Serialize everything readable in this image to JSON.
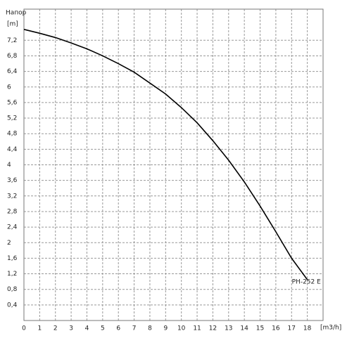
{
  "chart_data": {
    "type": "line",
    "title": "Напор",
    "y_label": "[m]",
    "x_label": "[m3/h]",
    "x": [
      0,
      1,
      2,
      3,
      4,
      5,
      6,
      7,
      8,
      9,
      10,
      11,
      12,
      13,
      14,
      15,
      16,
      17,
      18
    ],
    "series": [
      {
        "name": "PH-252 E",
        "color": "#000000",
        "values": [
          7.48,
          7.38,
          7.27,
          7.13,
          6.98,
          6.8,
          6.6,
          6.38,
          6.1,
          5.82,
          5.47,
          5.08,
          4.62,
          4.12,
          3.56,
          2.94,
          2.28,
          1.6,
          1.05
        ]
      }
    ],
    "xlim": [
      0,
      19
    ],
    "ylim": [
      0,
      8
    ],
    "xticks": [
      0,
      1,
      2,
      3,
      4,
      5,
      6,
      7,
      8,
      9,
      10,
      11,
      12,
      13,
      14,
      15,
      16,
      17,
      18
    ],
    "yticks": [
      {
        "value": 0.4,
        "label": "0,4"
      },
      {
        "value": 0.8,
        "label": "0,8"
      },
      {
        "value": 1.2,
        "label": "1,2"
      },
      {
        "value": 1.6,
        "label": "1,6"
      },
      2,
      {
        "value": 2.4,
        "label": "2,4"
      },
      {
        "value": 2.8,
        "label": "2,8"
      },
      {
        "value": 3.2,
        "label": "3,2"
      },
      {
        "value": 3.6,
        "label": "3,6"
      },
      4,
      {
        "value": 4.4,
        "label": "4,4"
      },
      {
        "value": 4.8,
        "label": "4,8"
      },
      {
        "value": 5.2,
        "label": "5,2"
      },
      {
        "value": 5.6,
        "label": "5,6"
      },
      6,
      {
        "value": 6.4,
        "label": "6,4"
      },
      {
        "value": 6.8,
        "label": "6,8"
      },
      {
        "value": 7.2,
        "label": "7,2"
      }
    ],
    "grid": true
  }
}
